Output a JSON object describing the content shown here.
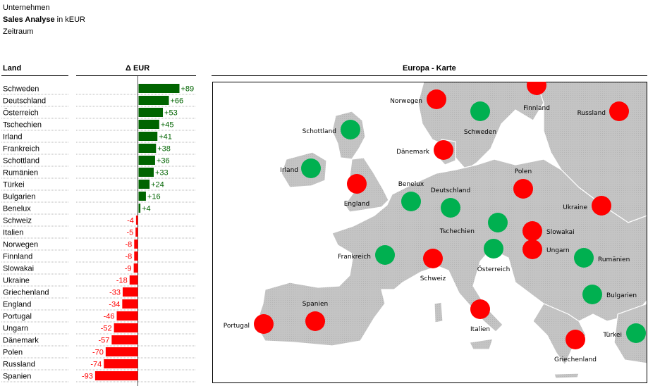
{
  "header": {
    "line1": "Unternehmen",
    "line2_bold": "Sales Analyse",
    "line2_rest": " in kEUR",
    "line3": "Zeitraum"
  },
  "columns": {
    "land": "Land",
    "delta": "Δ EUR",
    "map": "Europa - Karte"
  },
  "colors": {
    "positive": "#006400",
    "negative": "#ff0000",
    "marker_positive": "#00b050",
    "marker_negative": "#ff0000",
    "land": "#c8c8c8",
    "sea": "#ffffff"
  },
  "chart_data": {
    "type": "bar",
    "orientation": "horizontal",
    "categories": [
      "Schweden",
      "Deutschland",
      "Österreich",
      "Tschechien",
      "Irland",
      "Frankreich",
      "Schottland",
      "Rumänien",
      "Türkei",
      "Bulgarien",
      "Benelux",
      "Schweiz",
      "Italien",
      "Norwegen",
      "Finnland",
      "Slowakai",
      "Ukraine",
      "Griechenland",
      "England",
      "Portugal",
      "Ungarn",
      "Dänemark",
      "Polen",
      "Russland",
      "Spanien"
    ],
    "values": [
      89,
      66,
      53,
      45,
      41,
      38,
      36,
      33,
      24,
      16,
      4,
      -4,
      -5,
      -8,
      -8,
      -9,
      -18,
      -33,
      -34,
      -46,
      -52,
      -57,
      -70,
      -74,
      -93
    ],
    "value_labels": [
      "+89",
      "+66",
      "+53",
      "+45",
      "+41",
      "+38",
      "+36",
      "+33",
      "+24",
      "+16",
      "+4",
      "-4",
      "-5",
      "-8",
      "-8",
      "-9",
      "-18",
      "-33",
      "-34",
      "-46",
      "-52",
      "-57",
      "-70",
      "-74",
      "-93"
    ],
    "xlim": [
      -93,
      89
    ]
  },
  "map_markers": [
    {
      "name": "Norwegen",
      "status": "negative"
    },
    {
      "name": "Finnland",
      "status": "negative"
    },
    {
      "name": "Schweden",
      "status": "positive"
    },
    {
      "name": "Russland",
      "status": "negative"
    },
    {
      "name": "Schottland",
      "status": "positive"
    },
    {
      "name": "Dänemark",
      "status": "negative"
    },
    {
      "name": "Irland",
      "status": "positive"
    },
    {
      "name": "England",
      "status": "negative"
    },
    {
      "name": "Benelux",
      "status": "positive"
    },
    {
      "name": "Deutschland",
      "status": "positive"
    },
    {
      "name": "Polen",
      "status": "negative"
    },
    {
      "name": "Ukraine",
      "status": "negative"
    },
    {
      "name": "Tschechien",
      "status": "positive"
    },
    {
      "name": "Slowakai",
      "status": "negative"
    },
    {
      "name": "Ungarn",
      "status": "negative"
    },
    {
      "name": "Österreich",
      "status": "positive"
    },
    {
      "name": "Frankreich",
      "status": "positive"
    },
    {
      "name": "Schweiz",
      "status": "negative"
    },
    {
      "name": "Rumänien",
      "status": "positive"
    },
    {
      "name": "Bulgarien",
      "status": "positive"
    },
    {
      "name": "Spanien",
      "status": "negative"
    },
    {
      "name": "Portugal",
      "status": "negative"
    },
    {
      "name": "Italien",
      "status": "negative"
    },
    {
      "name": "Griechenland",
      "status": "negative"
    },
    {
      "name": "Türkei",
      "status": "positive"
    }
  ]
}
